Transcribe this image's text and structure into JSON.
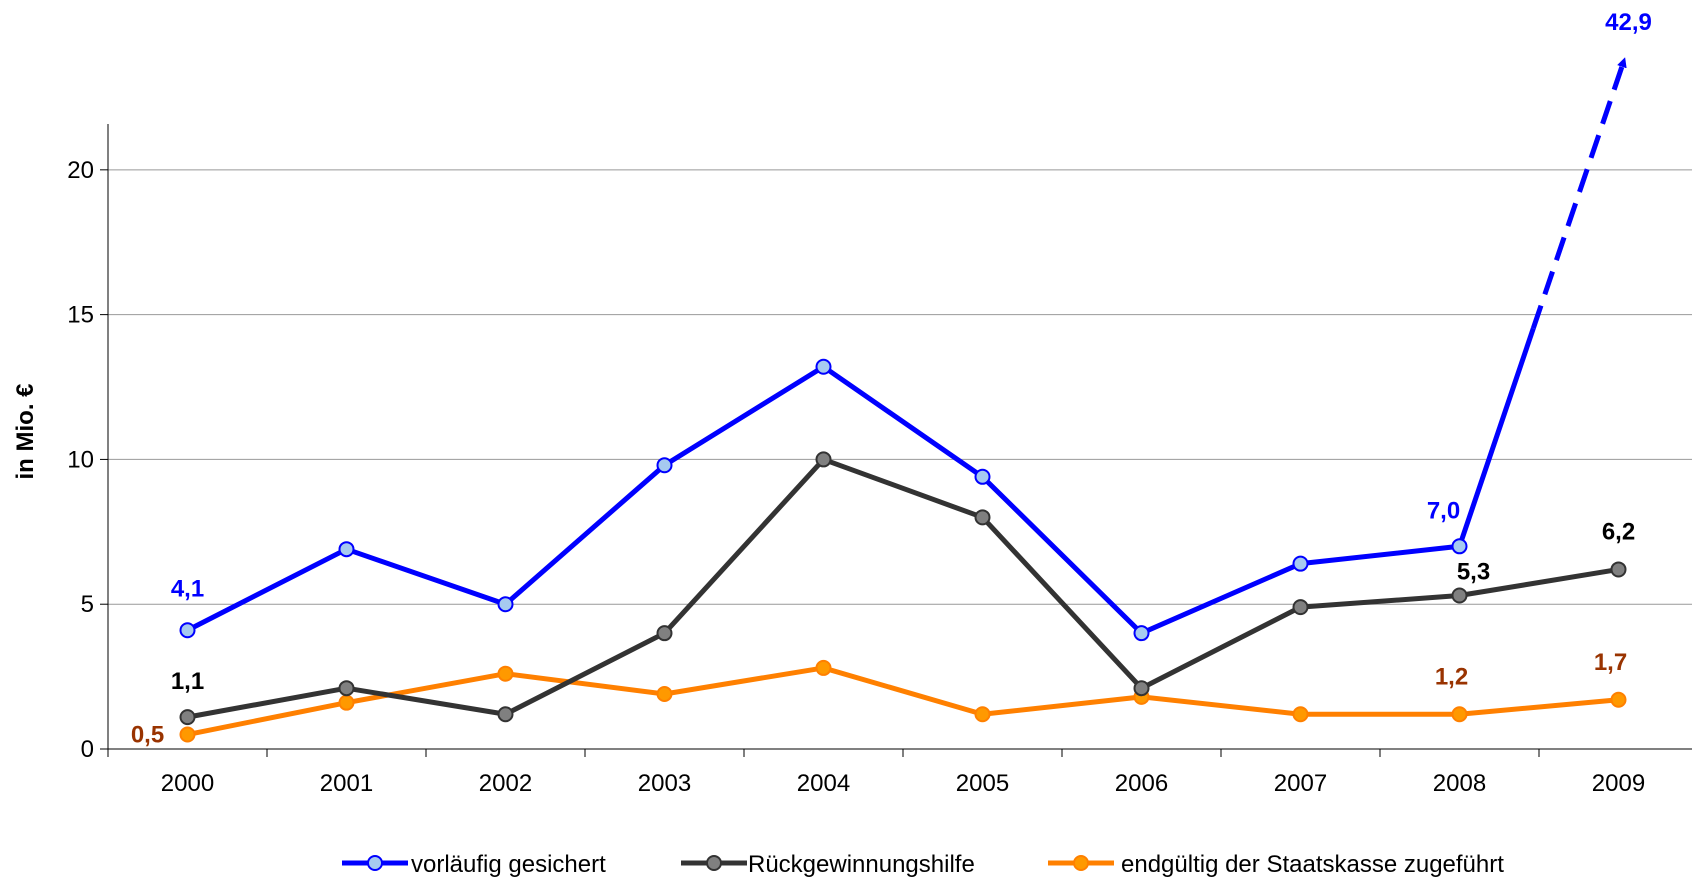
{
  "chart_data": {
    "type": "line",
    "title": "",
    "xlabel": "",
    "ylabel": "in Mio. €",
    "ylim": [
      0,
      24
    ],
    "yticks": [
      0,
      5,
      10,
      15,
      20
    ],
    "grid": true,
    "legend_position": "bottom",
    "categories": [
      "2000",
      "2001",
      "2002",
      "2003",
      "2004",
      "2005",
      "2006",
      "2007",
      "2008",
      "2009"
    ],
    "series": [
      {
        "name": "vorläufig gesichert",
        "color": "#0000ff",
        "marker_fill": "#a6caf0",
        "values": [
          4.1,
          6.9,
          5.0,
          9.8,
          13.2,
          9.4,
          4.0,
          6.4,
          7.0,
          null
        ],
        "off_scale_value": 42.9
      },
      {
        "name": "Rückgewinnungshilfe",
        "color": "#333333",
        "marker_fill": "#808080",
        "values": [
          1.1,
          2.1,
          1.2,
          4.0,
          10.0,
          8.0,
          2.1,
          4.9,
          5.3,
          6.2
        ]
      },
      {
        "name": "endgültig der Staatskasse zugeführt",
        "color": "#ff8000",
        "marker_fill": "#ff9900",
        "values": [
          0.5,
          1.6,
          2.6,
          1.9,
          2.8,
          1.2,
          1.8,
          1.2,
          1.2,
          1.7
        ]
      }
    ],
    "annotations": [
      {
        "series": 0,
        "index": 0,
        "text": "4,1",
        "color": "#0000ff"
      },
      {
        "series": 0,
        "index": 8,
        "text": "7,0",
        "color": "#0000ff"
      },
      {
        "series": 0,
        "index": 9,
        "text": "42,9",
        "color": "#0000ff"
      },
      {
        "series": 1,
        "index": 0,
        "text": "1,1",
        "color": "#000000"
      },
      {
        "series": 1,
        "index": 8,
        "text": "5,3",
        "color": "#000000"
      },
      {
        "series": 1,
        "index": 9,
        "text": "6,2",
        "color": "#000000"
      },
      {
        "series": 2,
        "index": 0,
        "text": "0,5",
        "color": "#993300"
      },
      {
        "series": 2,
        "index": 8,
        "text": "1,2",
        "color": "#993300"
      },
      {
        "series": 2,
        "index": 9,
        "text": "1,7",
        "color": "#993300"
      }
    ]
  }
}
